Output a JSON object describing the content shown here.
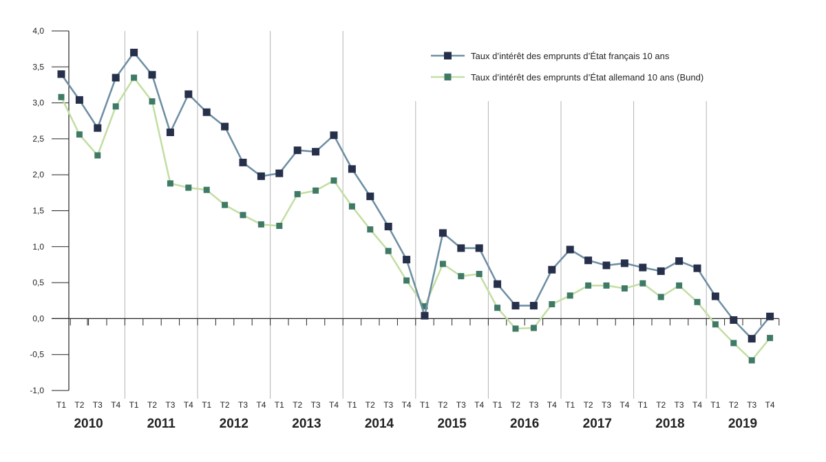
{
  "chart_data": {
    "type": "line",
    "title": "",
    "xlabel": "",
    "ylabel": "",
    "ylim": [
      -1.0,
      4.0
    ],
    "y_ticks": [
      "4,0",
      "3,5",
      "3,0",
      "2,5",
      "2,0",
      "1,5",
      "1,0",
      "0,5",
      "0,0",
      "-0,5",
      "-1,0"
    ],
    "y_tick_values": [
      4.0,
      3.5,
      3.0,
      2.5,
      2.0,
      1.5,
      1.0,
      0.5,
      0.0,
      -0.5,
      -1.0
    ],
    "quarters": [
      "T1",
      "T2",
      "T3",
      "T4"
    ],
    "years": [
      "2010",
      "2011",
      "2012",
      "2013",
      "2014",
      "2015",
      "2016",
      "2017",
      "2018",
      "2019"
    ],
    "legend_position": "top-right",
    "series": [
      {
        "name": "Taux d’intérêt des emprunts d’État français 10 ans",
        "color": "#6e8fa3",
        "marker_color": "#26304a",
        "values": [
          3.4,
          3.04,
          2.65,
          3.35,
          3.7,
          3.39,
          2.59,
          3.12,
          2.87,
          2.67,
          2.17,
          1.98,
          2.02,
          2.34,
          2.32,
          2.55,
          2.08,
          1.7,
          1.28,
          0.82,
          0.04,
          1.19,
          0.98,
          0.98,
          0.48,
          0.18,
          0.18,
          0.68,
          0.96,
          0.81,
          0.74,
          0.77,
          0.71,
          0.66,
          0.8,
          0.7,
          0.31,
          -0.02,
          -0.28,
          0.03
        ]
      },
      {
        "name": "Taux d’intérêt des emprunts d’État allemand 10 ans (Bund)",
        "color": "#c3dea3",
        "marker_color": "#3f7a66",
        "values": [
          3.08,
          2.56,
          2.27,
          2.95,
          3.35,
          3.02,
          1.88,
          1.82,
          1.79,
          1.58,
          1.44,
          1.31,
          1.29,
          1.73,
          1.78,
          1.92,
          1.56,
          1.24,
          0.94,
          0.53,
          0.17,
          0.76,
          0.59,
          0.62,
          0.15,
          -0.14,
          -0.13,
          0.2,
          0.32,
          0.46,
          0.46,
          0.42,
          0.49,
          0.3,
          0.46,
          0.23,
          -0.08,
          -0.34,
          -0.58,
          -0.27
        ]
      }
    ]
  }
}
